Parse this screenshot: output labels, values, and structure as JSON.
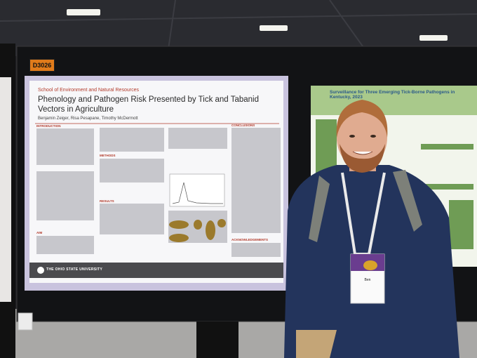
{
  "booth_number": "D3026",
  "poster": {
    "department": "School of Environment and Natural Resources",
    "title": "Phenology and Pathogen Risk Presented by Tick and Tabanid Vectors in Agriculture",
    "authors": "Benjamin Zeiger, Risa Pesapane, Timothy McDermott",
    "sections": [
      "INTRODUCTION",
      "METHODS",
      "RESULTS",
      "AIM",
      "CONCLUSIONS",
      "ACKNOWLEDGEMENTS"
    ],
    "university": "THE OHIO STATE UNIVERSITY"
  },
  "neighbor_poster": {
    "title": "Surveillance for Three Emerging Tick-Borne Pathogens in Kentucky, 2023"
  },
  "badge": {
    "name": "Ben"
  }
}
